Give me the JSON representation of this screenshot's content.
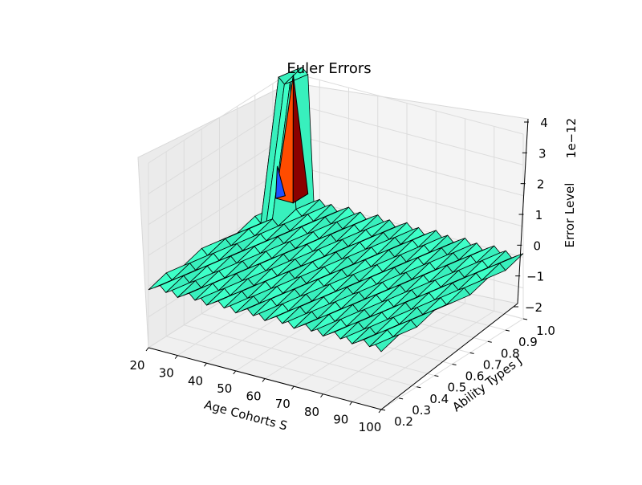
{
  "chart_data": {
    "type": "surface3d",
    "title": "Euler Errors",
    "xlabel": "Age Cohorts S",
    "ylabel": "Ability Types J",
    "zlabel": "Error Level",
    "z_offset_text": "1e−12",
    "x_ticks": [
      "20",
      "30",
      "40",
      "50",
      "60",
      "70",
      "80",
      "90",
      "100"
    ],
    "y_ticks": [
      "0.2",
      "0.3",
      "0.4",
      "0.5",
      "0.6",
      "0.7",
      "0.8",
      "0.9",
      "1.0"
    ],
    "z_ticks": [
      "−2",
      "−1",
      "0",
      "1",
      "2",
      "3",
      "4"
    ],
    "xlim": [
      20,
      100
    ],
    "ylim": [
      0.2,
      1.0
    ],
    "zlim": [
      -2,
      4
    ],
    "grid": true,
    "surface_color": "#3effc8",
    "peak": {
      "age": 24,
      "ability": 0.95,
      "error": 4.2
    }
  }
}
